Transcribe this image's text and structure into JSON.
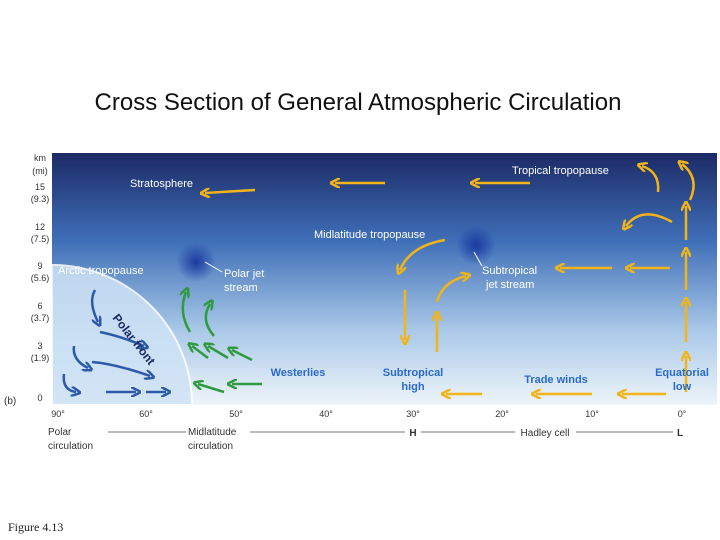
{
  "title": "Cross Section of General Atmospheric Circulation",
  "panel_label": "(b)",
  "altitude_axis": {
    "unit_labels": [
      "km",
      "(mi)"
    ],
    "ticks": [
      {
        "km": "15",
        "mi": "(9.3)"
      },
      {
        "km": "12",
        "mi": "(7.5)"
      },
      {
        "km": "9",
        "mi": "(5.6)"
      },
      {
        "km": "6",
        "mi": "(3.7)"
      },
      {
        "km": "3",
        "mi": "(1.9)"
      },
      {
        "km": "0"
      }
    ]
  },
  "latitudes": [
    "90°",
    "60°",
    "50°",
    "40°",
    "30°",
    "20°",
    "10°",
    "0°"
  ],
  "circulation": {
    "polar": [
      "Polar",
      "circulation"
    ],
    "midlatitude": [
      "Midlatitude",
      "circulation"
    ],
    "high": "H",
    "hadley": "Hadley cell",
    "low": "L"
  },
  "labels": {
    "stratosphere": "Stratosphere",
    "tropical_tropopause": "Tropical tropopause",
    "midlatitude_tropopause": "Midlatitude tropopause",
    "arctic_tropopause": "Arctic tropopause",
    "polar_jet": [
      "Polar jet",
      "stream"
    ],
    "subtropical_jet": [
      "Subtropical",
      "jet stream"
    ],
    "polar_front": "Polar front",
    "westerlies": "Westerlies",
    "subtropical_high": [
      "Subtropical",
      "high"
    ],
    "trade_winds": "Trade winds",
    "equatorial_low": [
      "Equatorial",
      "low"
    ]
  },
  "caption": "Figure 4.13"
}
